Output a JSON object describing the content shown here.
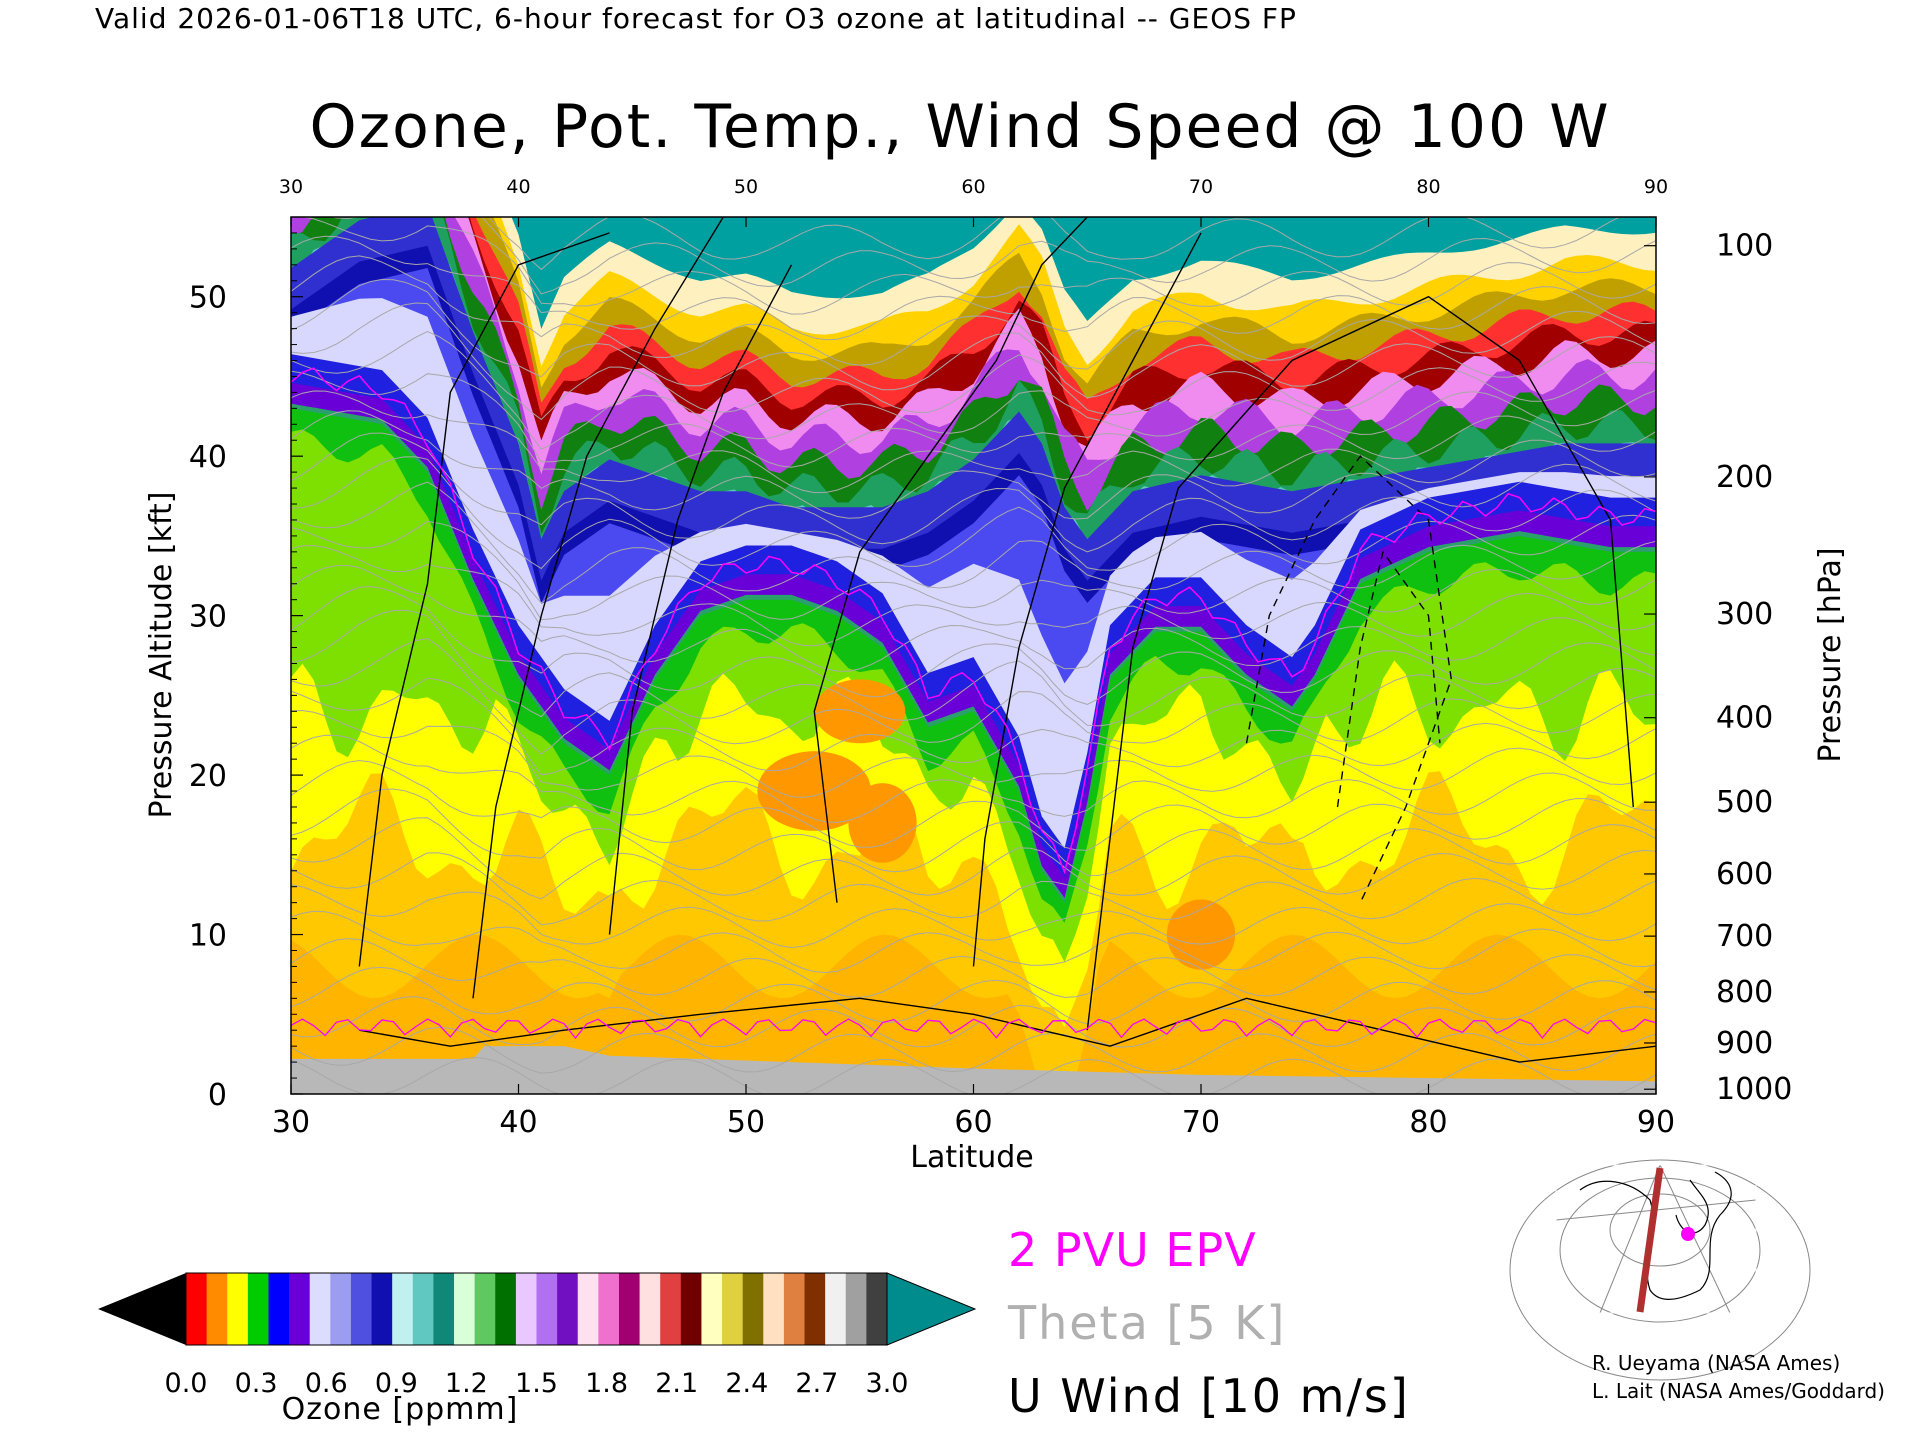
{
  "header": "Valid 2026-01-06T18 UTC, 6-hour forecast for O3 ozone at latitudinal -- GEOS FP",
  "chart_data": {
    "type": "heatmap",
    "title": "Ozone, Pot. Temp., Wind Speed @ 100 W",
    "xlabel": "Latitude",
    "ylabel": "Pressure Altitude [kft]",
    "y2label": "Pressure [hPa]",
    "xlim": [
      30,
      90
    ],
    "ylim": [
      0,
      55
    ],
    "x_ticks": [
      30,
      40,
      50,
      60,
      70,
      80,
      90
    ],
    "y_ticks": [
      0,
      10,
      20,
      30,
      40,
      50
    ],
    "pressure_ticks": [
      {
        "label": "100",
        "kft": 53.2
      },
      {
        "label": "200",
        "kft": 38.7
      },
      {
        "label": "300",
        "kft": 30.1
      },
      {
        "label": "400",
        "kft": 23.6
      },
      {
        "label": "500",
        "kft": 18.3
      },
      {
        "label": "600",
        "kft": 13.8
      },
      {
        "label": "700",
        "kft": 9.9
      },
      {
        "label": "800",
        "kft": 6.4
      },
      {
        "label": "900",
        "kft": 3.2
      },
      {
        "label": "1000",
        "kft": 0.3
      }
    ],
    "ozone_top_of_green_kft": [
      [
        30,
        43
      ],
      [
        34,
        42
      ],
      [
        36,
        39
      ],
      [
        38,
        32
      ],
      [
        40,
        26
      ],
      [
        42,
        22
      ],
      [
        44,
        20
      ],
      [
        46,
        26
      ],
      [
        48,
        30
      ],
      [
        50,
        31
      ],
      [
        52,
        31
      ],
      [
        54,
        30
      ],
      [
        56,
        28
      ],
      [
        58,
        23
      ],
      [
        60,
        24
      ],
      [
        62,
        19
      ],
      [
        63,
        14
      ],
      [
        64,
        12
      ],
      [
        65,
        18
      ],
      [
        66,
        26
      ],
      [
        68,
        29
      ],
      [
        70,
        29
      ],
      [
        72,
        26
      ],
      [
        74,
        24
      ],
      [
        75,
        26
      ],
      [
        77,
        32
      ],
      [
        80,
        34
      ],
      [
        84,
        35
      ],
      [
        88,
        34
      ],
      [
        90,
        34
      ]
    ],
    "tropopause_blue_top_kft": [
      [
        30,
        51
      ],
      [
        33,
        54
      ],
      [
        36,
        55
      ],
      [
        38,
        47
      ],
      [
        40,
        40
      ],
      [
        41,
        34
      ],
      [
        42,
        37
      ],
      [
        44,
        39
      ],
      [
        46,
        38
      ],
      [
        48,
        37
      ],
      [
        50,
        37
      ],
      [
        52,
        36
      ],
      [
        54,
        36
      ],
      [
        56,
        36
      ],
      [
        58,
        37
      ],
      [
        60,
        39
      ],
      [
        62,
        42
      ],
      [
        63,
        40
      ],
      [
        64,
        36
      ],
      [
        65,
        34
      ],
      [
        67,
        37
      ],
      [
        70,
        38
      ],
      [
        74,
        37
      ],
      [
        78,
        38
      ],
      [
        82,
        39
      ],
      [
        86,
        40
      ],
      [
        90,
        40
      ]
    ],
    "colorbar": {
      "label": "Ozone [ppmm]",
      "min": 0.0,
      "max": 3.0,
      "tick_labels": [
        "0.0",
        "0.3",
        "0.6",
        "0.9",
        "1.2",
        "1.5",
        "1.8",
        "2.1",
        "2.4",
        "2.7",
        "3.0"
      ],
      "colors": [
        "#ff0000",
        "#ff8c00",
        "#ffff00",
        "#00cc00",
        "#0000ff",
        "#6a00d8",
        "#dcdcff",
        "#9c9cf0",
        "#5050e0",
        "#1010b0",
        "#c0f0f0",
        "#60c8c0",
        "#108878",
        "#d8ffd8",
        "#60c860",
        "#007000",
        "#e8c8ff",
        "#b070f0",
        "#7010c0",
        "#ffe0f0",
        "#f070d0",
        "#a00070",
        "#ffe0e0",
        "#e04040",
        "#700000",
        "#ffffc0",
        "#e0d040",
        "#807000",
        "#ffe0c0",
        "#e08040",
        "#803000",
        "#f0f0f0",
        "#a0a0a0",
        "#404040"
      ],
      "under_color": "#000000",
      "over_color": "#008c8c"
    },
    "legend": [
      {
        "label": "2 PVU EPV",
        "color": "#ff00ff"
      },
      {
        "label": "Theta [5 K]",
        "color": "#b0b0b0"
      },
      {
        "label": "U Wind [10 m/s]",
        "color": "#000000"
      }
    ]
  },
  "credits": [
    "R. Ueyama (NASA Ames)",
    "L. Lait (NASA Ames/Goddard)"
  ]
}
